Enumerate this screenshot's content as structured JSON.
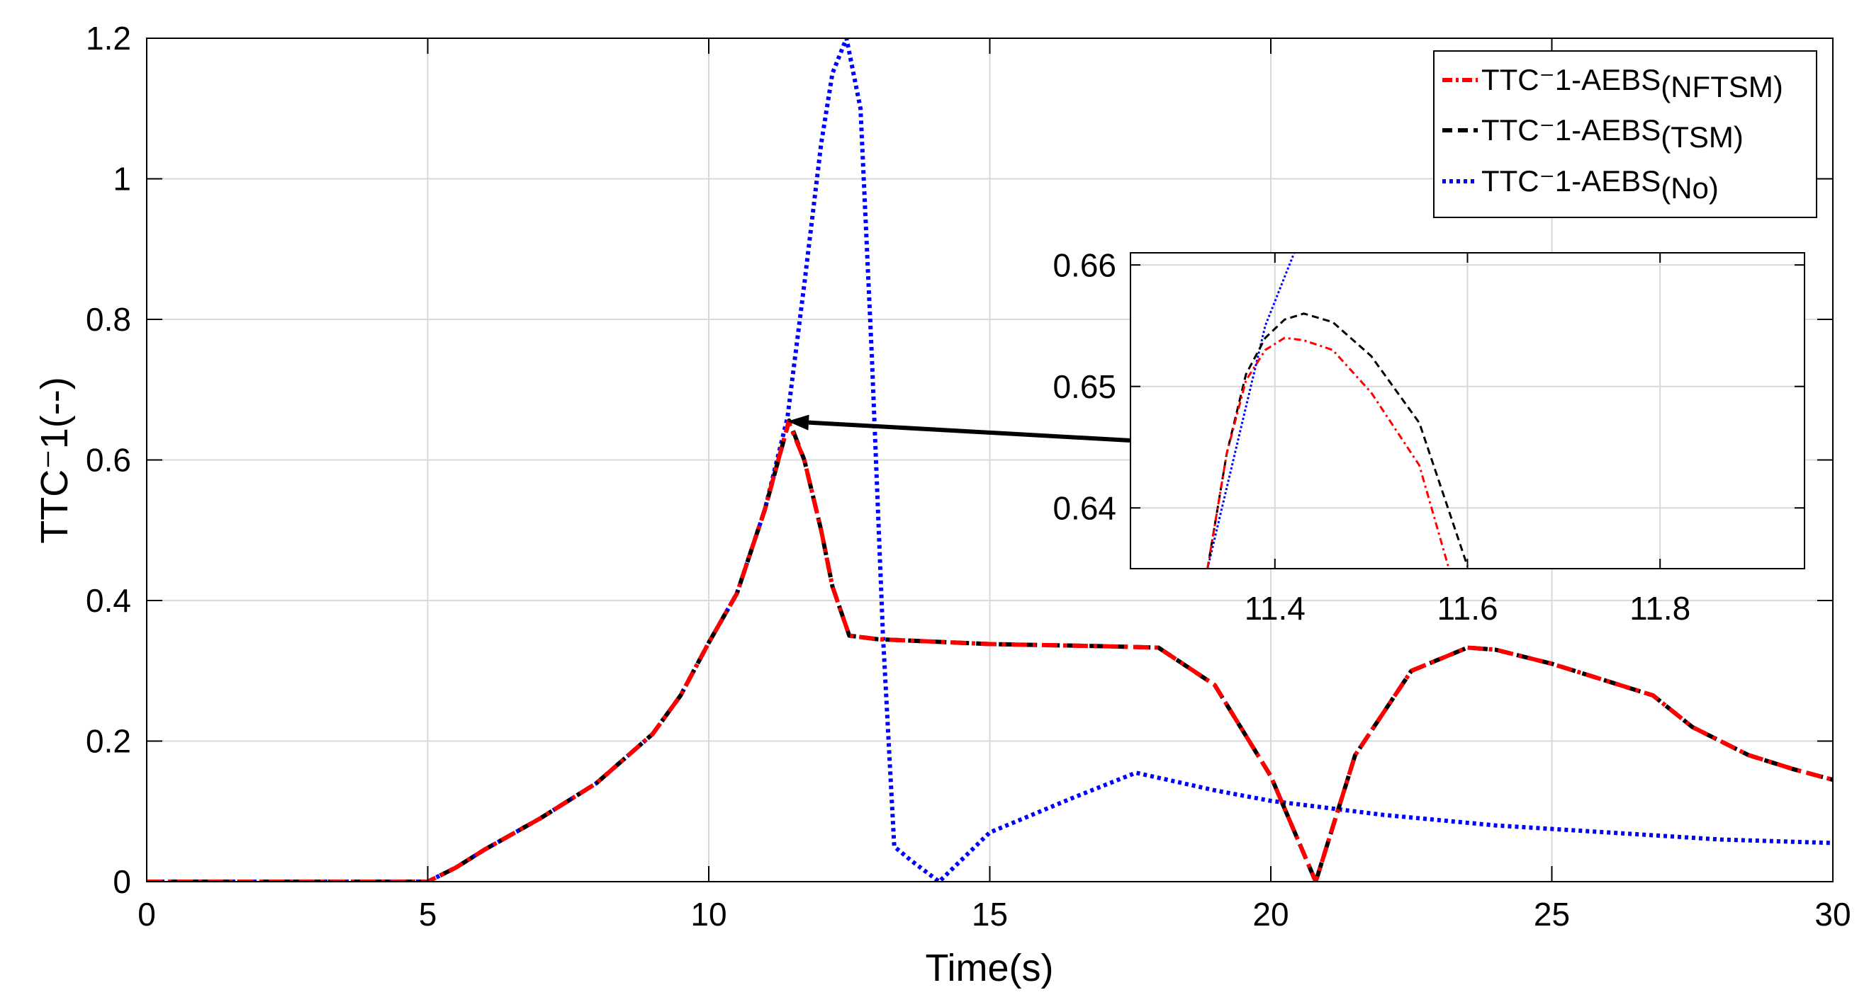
{
  "chart_data": [
    {
      "id": "main",
      "type": "line",
      "title": "",
      "xlabel": "Time(s)",
      "ylabel": "TTC⁻1(--)",
      "xlim": [
        0,
        30
      ],
      "ylim": [
        0,
        1.2
      ],
      "xticks": [
        0,
        5,
        10,
        15,
        20,
        25,
        30
      ],
      "xtick_labels": [
        "0",
        "5",
        "10",
        "15",
        "20",
        "25",
        "30"
      ],
      "yticks": [
        0,
        0.2,
        0.4,
        0.6,
        0.8,
        1.0,
        1.2
      ],
      "ytick_labels": [
        "0",
        "0.2",
        "0.4",
        "0.6",
        "0.8",
        "1",
        "1.2"
      ],
      "grid": true,
      "legend_position": "top-right",
      "series": [
        {
          "name": "NFTSM",
          "label_prefix": "TTC⁻1-AEBS",
          "label_suffix": "(NFTSM)",
          "color": "#ff0000",
          "style": "dash-dot",
          "x": [
            0,
            5,
            5.5,
            6,
            7,
            8,
            9,
            9.5,
            10,
            10.5,
            11,
            11.42,
            11.7,
            12,
            12.2,
            12.5,
            13,
            15,
            17,
            18,
            19,
            20,
            20.8,
            21.5,
            22.5,
            23.5,
            24,
            25,
            26,
            26.8,
            27.5,
            28.5,
            29.3,
            30
          ],
          "y": [
            0,
            0,
            0.02,
            0.045,
            0.09,
            0.14,
            0.21,
            0.265,
            0.34,
            0.41,
            0.53,
            0.654,
            0.6,
            0.5,
            0.42,
            0.35,
            0.345,
            0.338,
            0.335,
            0.333,
            0.28,
            0.15,
            0.0,
            0.18,
            0.3,
            0.333,
            0.33,
            0.31,
            0.285,
            0.265,
            0.22,
            0.18,
            0.16,
            0.145
          ]
        },
        {
          "name": "TSM",
          "label_prefix": "TTC⁻1-AEBS",
          "label_suffix": "(TSM)",
          "color": "#000000",
          "style": "dashed",
          "x": [
            0,
            5,
            5.5,
            6,
            7,
            8,
            9,
            9.5,
            10,
            10.5,
            11,
            11.43,
            11.7,
            12,
            12.2,
            12.5,
            13,
            15,
            17,
            18,
            19,
            20,
            20.8,
            21.5,
            22.5,
            23.5,
            24,
            25,
            26,
            26.8,
            27.5,
            28.5,
            29.3,
            30
          ],
          "y": [
            0,
            0,
            0.02,
            0.045,
            0.09,
            0.14,
            0.21,
            0.265,
            0.34,
            0.41,
            0.53,
            0.656,
            0.6,
            0.5,
            0.42,
            0.35,
            0.345,
            0.338,
            0.335,
            0.333,
            0.28,
            0.15,
            0.0,
            0.18,
            0.3,
            0.333,
            0.33,
            0.31,
            0.285,
            0.265,
            0.22,
            0.18,
            0.16,
            0.145
          ]
        },
        {
          "name": "No",
          "label_prefix": "TTC⁻1-AEBS",
          "label_suffix": "(No)",
          "color": "#0000ff",
          "style": "dotted",
          "x": [
            0,
            5,
            5.5,
            6,
            7,
            8,
            9,
            9.5,
            10,
            10.5,
            11,
            11.4,
            11.7,
            12,
            12.2,
            12.45,
            12.7,
            12.9,
            13.1,
            13.3,
            13.6,
            14.1,
            15,
            16.5,
            17.6,
            19,
            20,
            22,
            24,
            26,
            28,
            30
          ],
          "y": [
            0,
            0,
            0.02,
            0.045,
            0.09,
            0.14,
            0.21,
            0.265,
            0.34,
            0.41,
            0.53,
            0.66,
            0.85,
            1.05,
            1.15,
            1.2,
            1.1,
            0.75,
            0.35,
            0.05,
            0.03,
            0.0,
            0.07,
            0.12,
            0.155,
            0.13,
            0.115,
            0.095,
            0.08,
            0.07,
            0.06,
            0.055
          ]
        }
      ],
      "annotation": {
        "type": "arrow",
        "from_label": "inset",
        "to_x": 11.4,
        "to_y": 0.655
      }
    },
    {
      "id": "inset",
      "type": "line",
      "title": "",
      "xlabel": "",
      "ylabel": "",
      "xlim": [
        11.25,
        11.95
      ],
      "ylim": [
        0.635,
        0.661
      ],
      "xticks": [
        11.4,
        11.6,
        11.8
      ],
      "xtick_labels": [
        "11.4",
        "11.6",
        "11.8"
      ],
      "yticks": [
        0.64,
        0.65,
        0.66
      ],
      "ytick_labels": [
        "0.64",
        "0.65",
        "0.66"
      ],
      "grid": true,
      "series": [
        {
          "name": "NFTSM",
          "color": "#ff0000",
          "style": "dash-dot",
          "x": [
            11.33,
            11.35,
            11.37,
            11.39,
            11.41,
            11.43,
            11.46,
            11.5,
            11.55,
            11.58
          ],
          "y": [
            0.635,
            0.6445,
            0.6505,
            0.653,
            0.654,
            0.6538,
            0.653,
            0.6495,
            0.6435,
            0.6352
          ]
        },
        {
          "name": "TSM",
          "color": "#000000",
          "style": "dashed",
          "x": [
            11.33,
            11.35,
            11.37,
            11.39,
            11.41,
            11.43,
            11.46,
            11.5,
            11.55,
            11.6
          ],
          "y": [
            0.635,
            0.6445,
            0.651,
            0.654,
            0.6555,
            0.656,
            0.6553,
            0.6525,
            0.647,
            0.6352
          ]
        },
        {
          "name": "No",
          "color": "#0000ff",
          "style": "dotted",
          "x": [
            11.33,
            11.36,
            11.39,
            11.42
          ],
          "y": [
            0.635,
            0.645,
            0.655,
            0.661
          ]
        }
      ]
    }
  ]
}
